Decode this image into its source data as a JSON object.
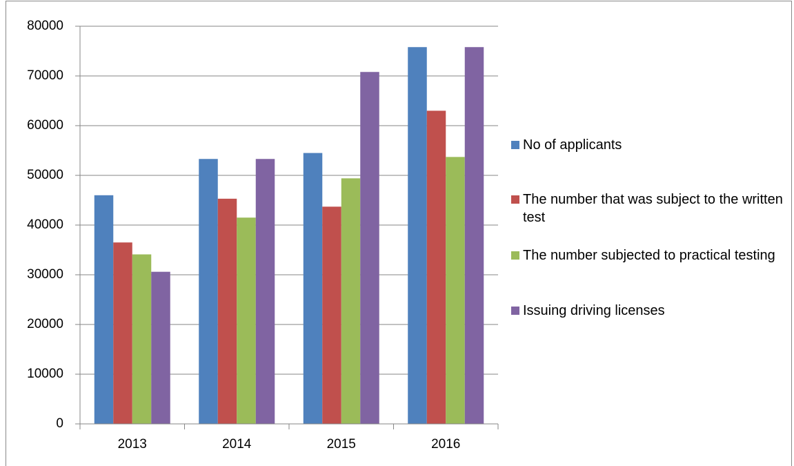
{
  "chart_data": {
    "type": "bar",
    "categories": [
      "2013",
      "2014",
      "2015",
      "2016"
    ],
    "series": [
      {
        "name": "No of applicants",
        "color": "#4f81bd",
        "values": [
          46000,
          53300,
          54500,
          75800
        ]
      },
      {
        "name": "The number that was subject to the written test",
        "color": "#c0504d",
        "values": [
          36500,
          45300,
          43700,
          63000
        ]
      },
      {
        "name": "The number subjected to practical testing",
        "color": "#9bbb59",
        "values": [
          34100,
          41500,
          49400,
          53700
        ]
      },
      {
        "name": "Issuing driving licenses",
        "color": "#8064a2",
        "values": [
          30600,
          53300,
          70800,
          75800
        ]
      }
    ],
    "ylim": [
      0,
      80000
    ],
    "yticks": [
      0,
      10000,
      20000,
      30000,
      40000,
      50000,
      60000,
      70000,
      80000
    ],
    "grid": true,
    "legend": "right"
  }
}
